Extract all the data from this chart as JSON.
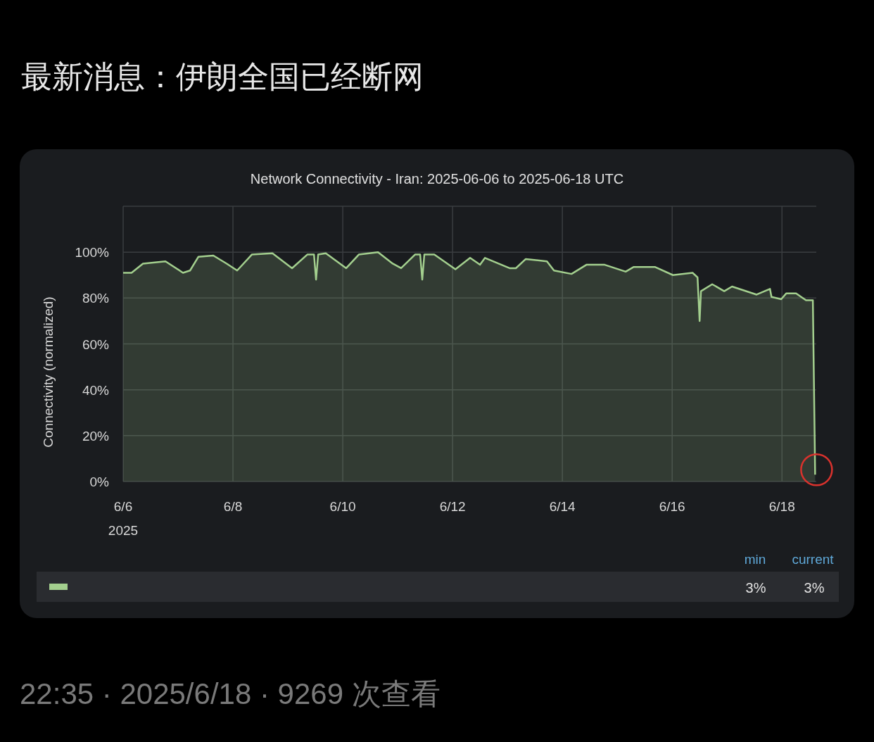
{
  "chart_data": {
    "type": "area",
    "title": "最新消息：伊朗全国已经断网",
    "subtitle": "Network Connectivity - Iran: 2025-06-06 to 2025-06-18 UTC",
    "ylabel": "Connectivity (normalized)",
    "x": [
      "2025-06-06T00:00",
      "2025-06-06T03:40",
      "2025-06-06T08:40",
      "2025-06-06T18:30",
      "2025-06-07T02:10",
      "2025-06-07T05:15",
      "2025-06-07T08:55",
      "2025-06-07T15:25",
      "2025-06-07T21:15",
      "2025-06-08T01:50",
      "2025-06-08T08:20",
      "2025-06-08T17:15",
      "2025-06-09T01:50",
      "2025-06-09T08:35",
      "2025-06-09T11:25",
      "2025-06-09T12:20",
      "2025-06-09T13:15",
      "2025-06-09T16:35",
      "2025-06-10T01:30",
      "2025-06-10T07:05",
      "2025-06-10T15:25",
      "2025-06-10T21:50",
      "2025-06-11T01:30",
      "2025-06-11T07:40",
      "2025-06-11T09:50",
      "2025-06-11T10:45",
      "2025-06-11T11:40",
      "2025-06-11T16:00",
      "2025-06-12T01:15",
      "2025-06-12T07:40",
      "2025-06-12T12:00",
      "2025-06-12T14:10",
      "2025-06-13T00:55",
      "2025-06-13T03:40",
      "2025-06-13T08:00",
      "2025-06-13T17:15",
      "2025-06-13T20:20",
      "2025-06-14T04:00",
      "2025-06-14T10:30",
      "2025-06-14T18:30",
      "2025-06-15T03:40",
      "2025-06-15T07:05",
      "2025-06-15T16:35",
      "2025-06-16T00:20",
      "2025-06-16T08:55",
      "2025-06-16T11:05",
      "2025-06-16T12:00",
      "2025-06-16T12:35",
      "2025-06-16T17:30",
      "2025-06-16T22:45",
      "2025-06-17T02:10",
      "2025-06-17T12:55",
      "2025-06-17T18:45",
      "2025-06-17T19:25",
      "2025-06-17T23:40",
      "2025-06-18T01:50",
      "2025-06-18T06:10",
      "2025-06-18T10:30",
      "2025-06-18T13:30",
      "2025-06-18T14:30"
    ],
    "series": [
      {
        "color": "#a3cf8e",
        "values": [
          91,
          91,
          95,
          96,
          91,
          92,
          98,
          98.5,
          95,
          92,
          99,
          99.5,
          93,
          99,
          99,
          88,
          99,
          99.5,
          93,
          99,
          100,
          95,
          93,
          99,
          99,
          88,
          99,
          99,
          92.5,
          97.5,
          94.5,
          97.5,
          93,
          93,
          97,
          96,
          92,
          90.5,
          94.5,
          94.5,
          91.5,
          93.5,
          93.5,
          90,
          91,
          89,
          70,
          83,
          86,
          83,
          85,
          81.5,
          84,
          80.5,
          79.5,
          82,
          82,
          79,
          79,
          3
        ]
      }
    ],
    "xlim": [
      "2025-06-06T00:00",
      "2025-06-18T15:00"
    ],
    "xticks": [
      {
        "value": "2025-06-06",
        "label": "6/6\n2025"
      },
      {
        "value": "2025-06-08",
        "label": "6/8"
      },
      {
        "value": "2025-06-10",
        "label": "6/10"
      },
      {
        "value": "2025-06-12",
        "label": "6/12"
      },
      {
        "value": "2025-06-14",
        "label": "6/14"
      },
      {
        "value": "2025-06-16",
        "label": "6/16"
      },
      {
        "value": "2025-06-18",
        "label": "6/18"
      }
    ],
    "ylim": [
      0,
      120
    ],
    "yticks": [
      {
        "value": 0,
        "label": "0%"
      },
      {
        "value": 20,
        "label": "20%"
      },
      {
        "value": 40,
        "label": "40%"
      },
      {
        "value": 60,
        "label": "60%"
      },
      {
        "value": 80,
        "label": "80%"
      },
      {
        "value": 100,
        "label": "100%"
      },
      {
        "value": 120,
        "label": null
      }
    ],
    "grid": true,
    "annotations": [
      "min",
      "current",
      "3%",
      "3%",
      "22:35 · 2025/6/18 · 9269 次查看"
    ]
  }
}
